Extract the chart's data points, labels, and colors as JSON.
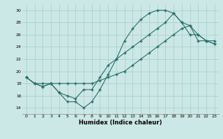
{
  "xlabel": "Humidex (Indice chaleur)",
  "bg_color": "#cce8e6",
  "grid_color": "#aacfcd",
  "line_color": "#2a6e68",
  "xlim": [
    -0.5,
    23.5
  ],
  "ylim": [
    13,
    31
  ],
  "yticks": [
    14,
    16,
    18,
    20,
    22,
    24,
    26,
    28,
    30
  ],
  "xticks": [
    0,
    1,
    2,
    3,
    4,
    5,
    6,
    7,
    8,
    9,
    10,
    11,
    12,
    13,
    14,
    15,
    16,
    17,
    18,
    19,
    20,
    21,
    22,
    23
  ],
  "line1_x": [
    0,
    1,
    2,
    3,
    4,
    5,
    6,
    7,
    8,
    9,
    10,
    11,
    12,
    13,
    14,
    15,
    16,
    17,
    18,
    19,
    20,
    21,
    22,
    23
  ],
  "line1_y": [
    19,
    18,
    17.5,
    18,
    16.5,
    15,
    15,
    14,
    15,
    17,
    19.5,
    22,
    25,
    27,
    28.5,
    29.5,
    30,
    30,
    29.5,
    28,
    27.5,
    26,
    25,
    24.5
  ],
  "line2_x": [
    0,
    1,
    2,
    3,
    4,
    5,
    6,
    7,
    8,
    9,
    10,
    11,
    12,
    13,
    14,
    15,
    16,
    17,
    18,
    19,
    20,
    21,
    22,
    23
  ],
  "line2_y": [
    19,
    18,
    17.5,
    18,
    16.5,
    16,
    15.5,
    17,
    17,
    19,
    21,
    22,
    23,
    24,
    25,
    26,
    27,
    28,
    29.5,
    28,
    26,
    26,
    25,
    25
  ],
  "line3_x": [
    0,
    1,
    2,
    3,
    4,
    5,
    6,
    7,
    8,
    9,
    10,
    11,
    12,
    13,
    14,
    15,
    16,
    17,
    18,
    19,
    20,
    21,
    22,
    23
  ],
  "line3_y": [
    19,
    18,
    18,
    18,
    18,
    18,
    18,
    18,
    18,
    18.5,
    19,
    19.5,
    20,
    21,
    22,
    23,
    24,
    25,
    26,
    27,
    27.5,
    25,
    25,
    24.5
  ]
}
